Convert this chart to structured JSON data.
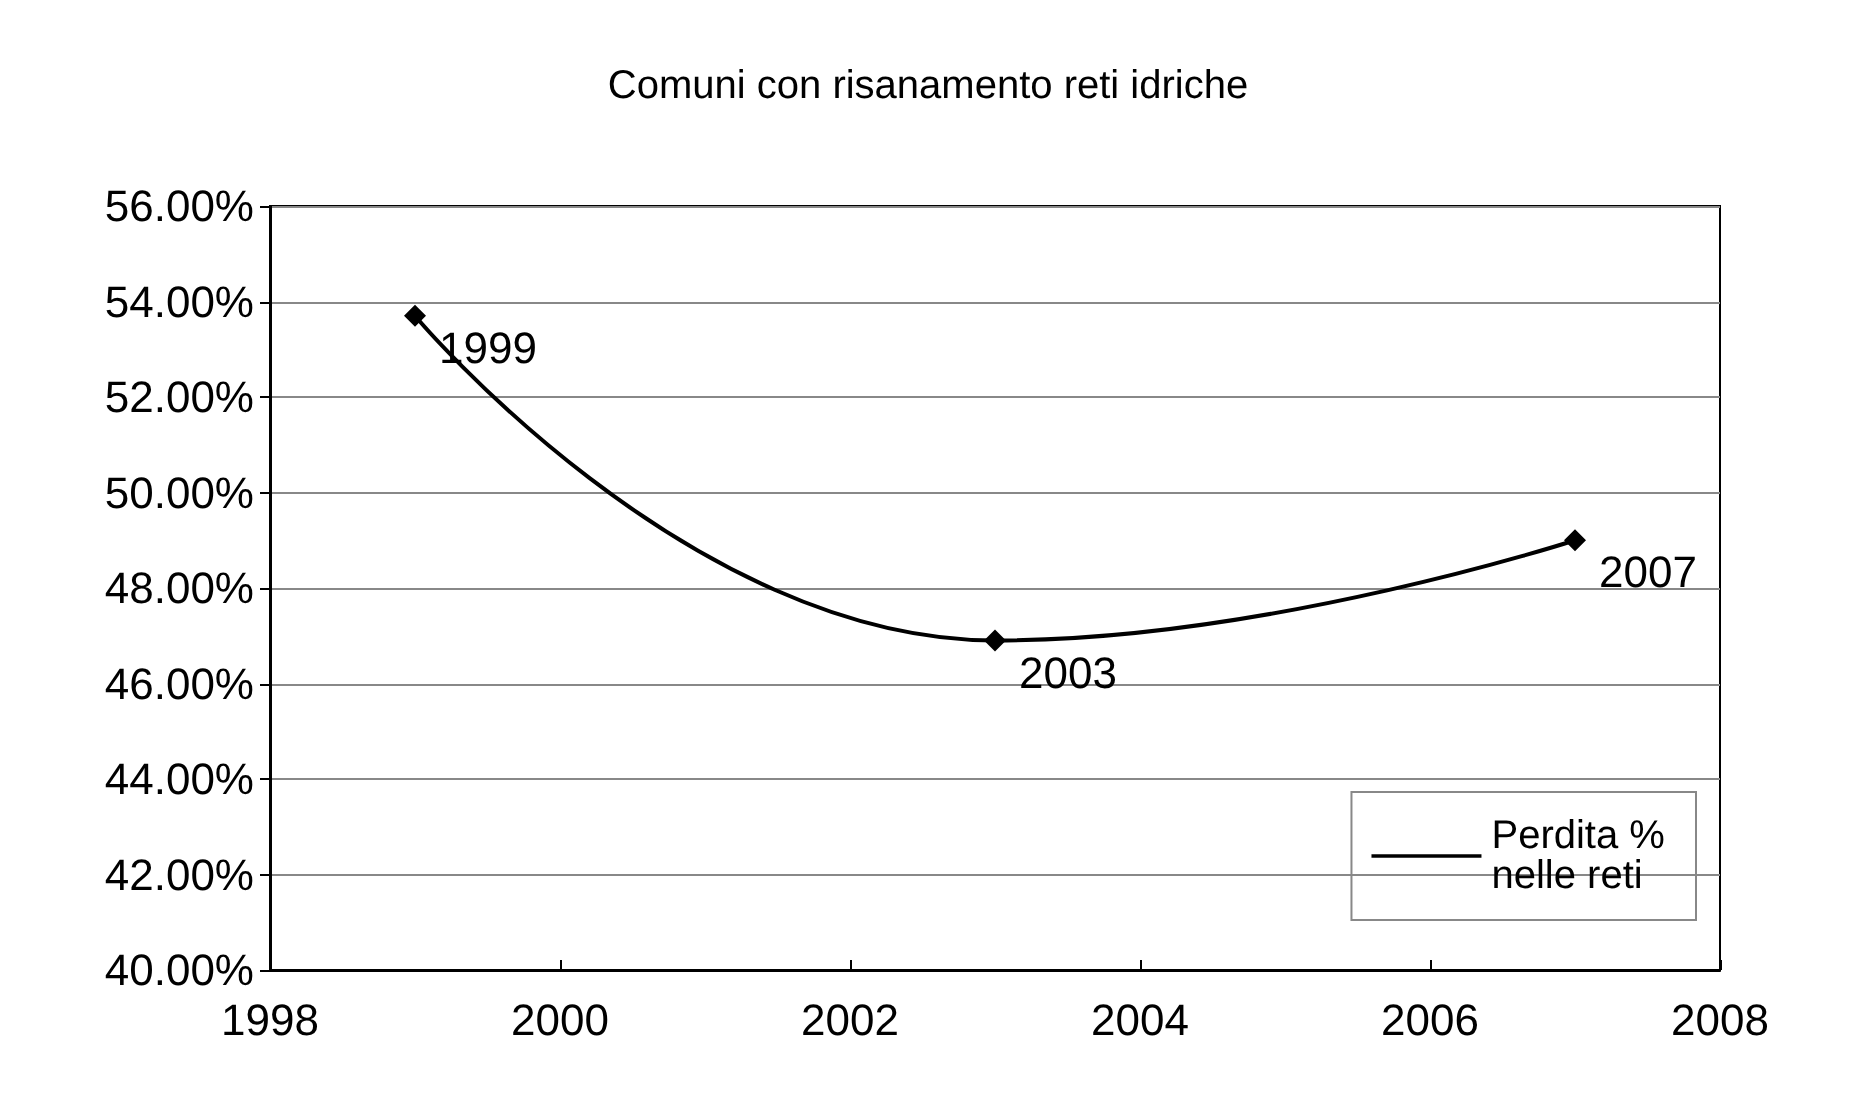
{
  "chart_data": {
    "type": "line",
    "title": "Comuni con risanamento reti idriche",
    "x": [
      1999,
      2003,
      2007
    ],
    "series": [
      {
        "name": "Perdita % nelle reti",
        "color": "#000000",
        "values": [
          53.7,
          46.9,
          49.0
        ]
      }
    ],
    "xlim": [
      1998,
      2008
    ],
    "xticks": [
      1998,
      2000,
      2002,
      2004,
      2006,
      2008
    ],
    "ylim": [
      40,
      56
    ],
    "yticks": [
      {
        "value": 40,
        "label": "40.00%"
      },
      {
        "value": 42,
        "label": "42.00%"
      },
      {
        "value": 44,
        "label": "44.00%"
      },
      {
        "value": 46,
        "label": "46.00%"
      },
      {
        "value": 48,
        "label": "48.00%"
      },
      {
        "value": 50,
        "label": "50.00%"
      },
      {
        "value": 52,
        "label": "52.00%"
      },
      {
        "value": 54,
        "label": "54.00%"
      },
      {
        "value": 56,
        "label": "56.00%"
      }
    ],
    "annotations": [
      {
        "text": "1999",
        "x": 1999,
        "y": 53.7
      },
      {
        "text": "2003",
        "x": 2003,
        "y": 46.9
      },
      {
        "text": "2007",
        "x": 2007,
        "y": 49.0
      }
    ],
    "grid": "y",
    "legend": "bottom right",
    "marker": "diamond",
    "line_style": "solid"
  }
}
